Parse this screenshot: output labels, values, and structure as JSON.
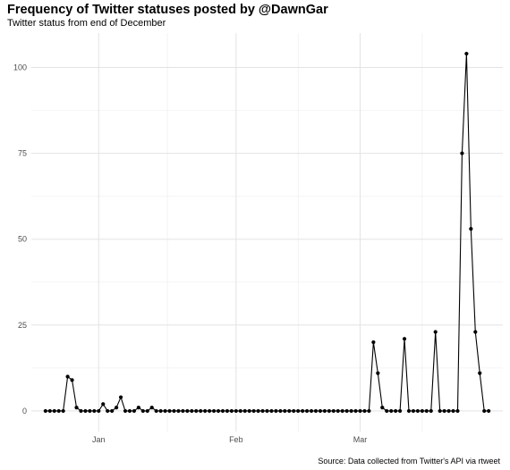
{
  "chart_data": {
    "type": "line",
    "title": "Frequency of Twitter statuses posted by @DawnGar",
    "subtitle": "Twitter status from end of December",
    "caption": "Source: Data collected from Twitter's API via rtweet",
    "xlabel": "",
    "ylabel": "",
    "x_start": "2017-12-20",
    "ylim": [
      -6,
      110
    ],
    "y_ticks": [
      0,
      25,
      50,
      75,
      100
    ],
    "x_ticks": [
      {
        "label": "Jan",
        "date": "2018-01-01"
      },
      {
        "label": "Feb",
        "date": "2018-02-01"
      },
      {
        "label": "Mar",
        "date": "2018-03-01"
      }
    ],
    "grid": true,
    "points_shown": true,
    "line_color": "#000000",
    "series": [
      {
        "values": [
          0,
          0,
          0,
          0,
          0,
          10,
          9,
          1,
          0,
          0,
          0,
          0,
          0,
          2,
          0,
          0,
          1,
          4,
          0,
          0,
          0,
          1,
          0,
          0,
          1,
          0,
          0,
          0,
          0,
          0,
          0,
          0,
          0,
          0,
          0,
          0,
          0,
          0,
          0,
          0,
          0,
          0,
          0,
          0,
          0,
          0,
          0,
          0,
          0,
          0,
          0,
          0,
          0,
          0,
          0,
          0,
          0,
          0,
          0,
          0,
          0,
          0,
          0,
          0,
          0,
          0,
          0,
          0,
          0,
          0,
          0,
          0,
          0,
          0,
          20,
          11,
          1,
          0,
          0,
          0,
          0,
          21,
          0,
          0,
          0,
          0,
          0,
          0,
          23,
          0,
          0,
          0,
          0,
          0,
          75,
          104,
          53,
          23,
          11,
          0,
          0
        ]
      }
    ]
  }
}
